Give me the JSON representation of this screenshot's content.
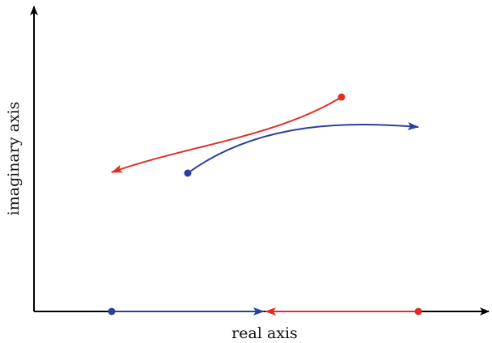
{
  "labels": {
    "x_axis": "real axis",
    "y_axis": "imaginary axis"
  },
  "colors": {
    "axis": "#000000",
    "blue": "#2b3f9b",
    "red": "#dd2f25"
  }
}
